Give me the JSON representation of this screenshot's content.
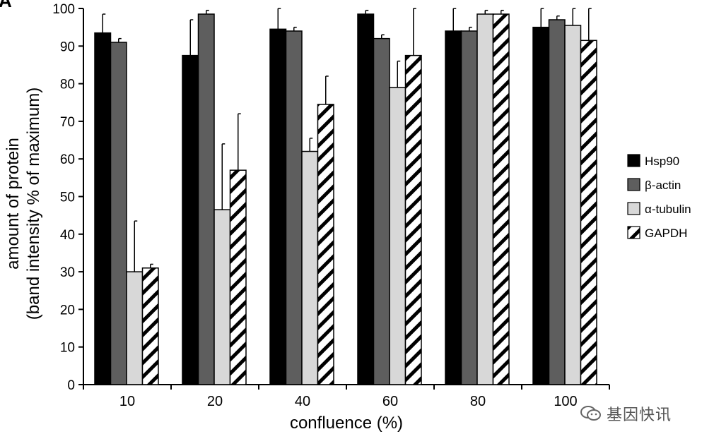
{
  "chart_data": {
    "type": "bar",
    "panel_label": "A",
    "xlabel": "confluence (%)",
    "ylabel_line1": "amount of protein",
    "ylabel_line2": "(band intensity % of maximum)",
    "ylim": [
      0,
      100
    ],
    "yticks": [
      0,
      10,
      20,
      30,
      40,
      50,
      60,
      70,
      80,
      90,
      100
    ],
    "categories": [
      "10",
      "20",
      "40",
      "60",
      "80",
      "100"
    ],
    "series": [
      {
        "name": "Hsp90",
        "fill": "#000000",
        "pattern": "solid",
        "values": [
          93.5,
          87.5,
          94.5,
          98.5,
          94,
          95
        ],
        "errors": [
          5,
          9.5,
          5.5,
          1,
          6,
          5
        ]
      },
      {
        "name": "β-actin",
        "fill": "#5e5e5e",
        "pattern": "solid",
        "values": [
          91,
          98.5,
          94,
          92,
          94,
          97
        ],
        "errors": [
          1,
          1,
          1,
          1,
          1,
          1
        ]
      },
      {
        "name": "α-tubulin",
        "fill": "#d8d8d8",
        "pattern": "solid",
        "values": [
          30,
          46.5,
          62,
          79,
          98.5,
          95.5
        ],
        "errors": [
          13.5,
          17.5,
          3.5,
          7,
          1,
          4.5
        ]
      },
      {
        "name": "GAPDH",
        "fill": "#ffffff",
        "pattern": "hatch",
        "values": [
          31,
          57,
          74.5,
          87.5,
          98.5,
          91.5
        ],
        "errors": [
          1,
          15,
          7.5,
          12.5,
          1,
          8.5
        ]
      }
    ]
  },
  "watermark": {
    "text": "基因快讯",
    "icon": "wechat-logo-icon"
  }
}
